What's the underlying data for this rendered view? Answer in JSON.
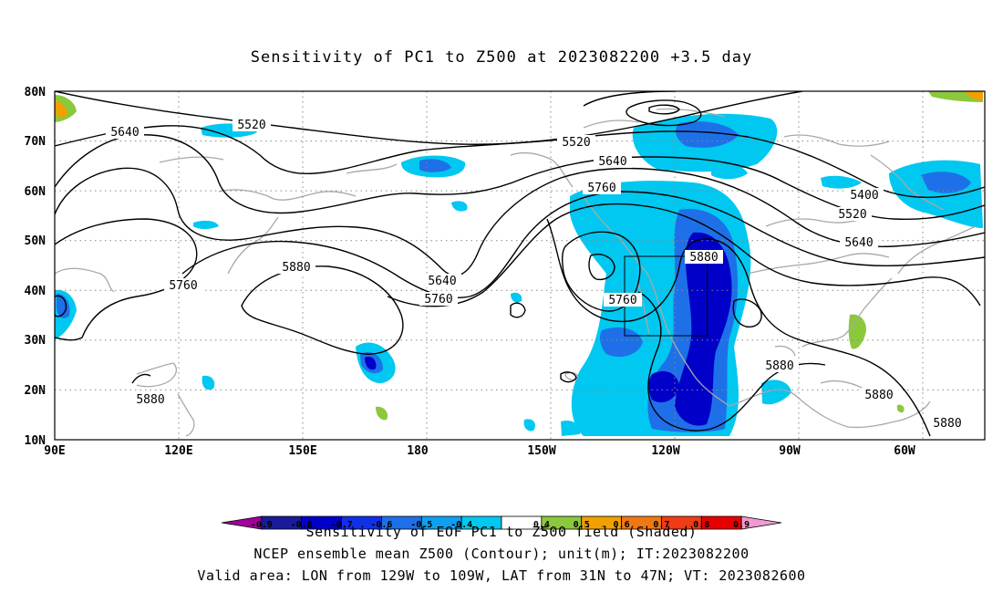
{
  "title": "Sensitivity of PC1 to Z500 at 2023082200 +3.5 day",
  "x_ticks": [
    "90E",
    "120E",
    "150E",
    "180",
    "150W",
    "120W",
    "90W",
    "60W"
  ],
  "y_ticks": [
    "80N",
    "70N",
    "60N",
    "50N",
    "40N",
    "30N",
    "20N",
    "10N"
  ],
  "contour_labels": [
    "5640",
    "5520",
    "5520",
    "5640",
    "5760",
    "5400",
    "5520",
    "5640",
    "5880",
    "5760",
    "5880",
    "5640",
    "5760",
    "5760",
    "5880",
    "5880",
    "5880",
    "5880"
  ],
  "colorbar": {
    "levels": [
      "-0.9",
      "-0.8",
      "-0.7",
      "-0.6",
      "-0.5",
      "-0.4",
      "0.4",
      "0.5",
      "0.6",
      "0.7",
      "0.8",
      "0.9"
    ],
    "colors": [
      "#a0009a",
      "#1a1a9a",
      "#0000c8",
      "#1030e8",
      "#1e70e8",
      "#10a0f0",
      "#00c8f0",
      "#ffffff",
      "#8cc83c",
      "#f0a000",
      "#f07814",
      "#f03c14",
      "#e80000",
      "#f09ad0"
    ]
  },
  "footer": {
    "line1": "Sensitivity of EOF PC1 to Z500 field (Shaded)",
    "line2": "NCEP ensemble mean Z500 (Contour); unit(m); IT:2023082200",
    "line3": "Valid area: LON from 129W to 109W, LAT from 31N to 47N; VT: 2023082600"
  }
}
